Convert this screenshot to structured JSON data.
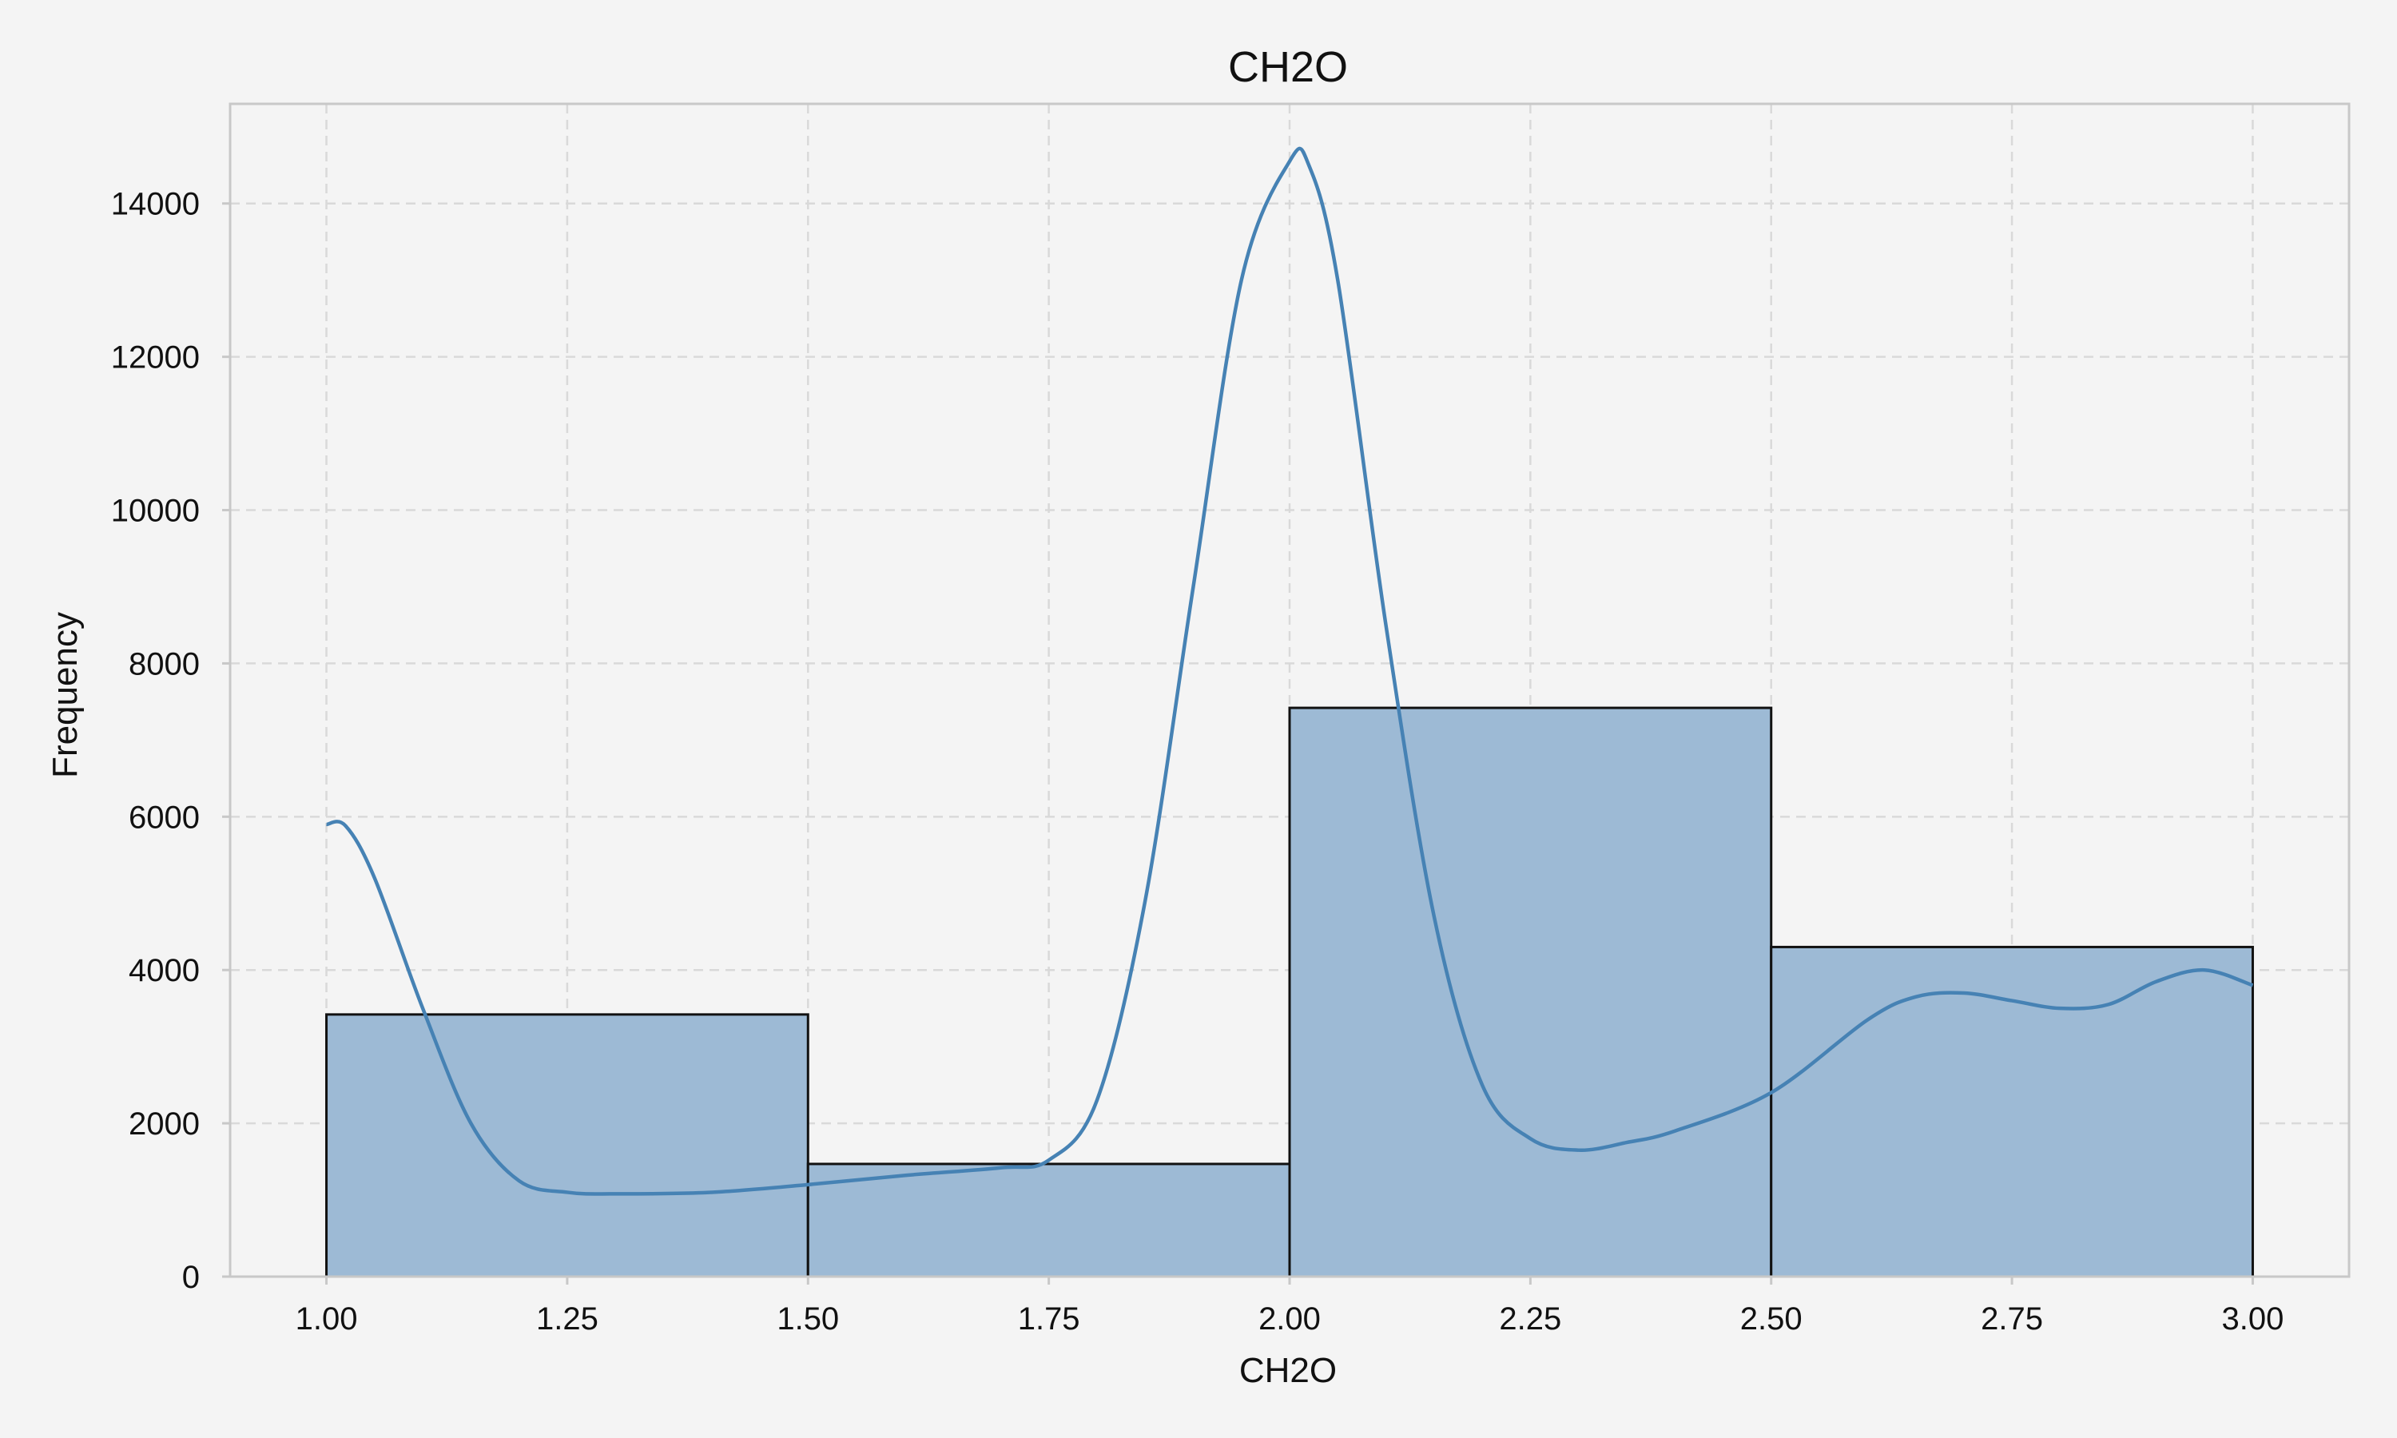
{
  "chart_data": {
    "type": "histogram",
    "title": "CH2O",
    "xlabel": "CH2O",
    "ylabel": "Frequency",
    "xlim": [
      0.9,
      3.1
    ],
    "ylim": [
      0,
      15300
    ],
    "grid": true,
    "x_ticks": [
      1.0,
      1.25,
      1.5,
      1.75,
      2.0,
      2.25,
      2.5,
      2.75,
      3.0
    ],
    "x_tick_labels": [
      "1.00",
      "1.25",
      "1.50",
      "1.75",
      "2.00",
      "2.25",
      "2.50",
      "2.75",
      "3.00"
    ],
    "y_ticks": [
      0,
      2000,
      4000,
      6000,
      8000,
      10000,
      12000,
      14000
    ],
    "y_tick_labels": [
      "0",
      "2000",
      "4000",
      "6000",
      "8000",
      "10000",
      "12000",
      "14000"
    ],
    "bins": [
      {
        "start": 1.0,
        "end": 1.5,
        "count": 3420
      },
      {
        "start": 1.5,
        "end": 2.0,
        "count": 1470
      },
      {
        "start": 2.0,
        "end": 2.5,
        "count": 7420
      },
      {
        "start": 2.5,
        "end": 3.0,
        "count": 4300
      }
    ],
    "kde": {
      "x": [
        1.0,
        1.02,
        1.05,
        1.1,
        1.15,
        1.2,
        1.25,
        1.3,
        1.4,
        1.5,
        1.6,
        1.7,
        1.75,
        1.8,
        1.85,
        1.9,
        1.95,
        2.0,
        2.02,
        2.05,
        2.1,
        2.15,
        2.2,
        2.25,
        2.3,
        2.35,
        2.4,
        2.5,
        2.6,
        2.65,
        2.7,
        2.75,
        2.8,
        2.85,
        2.9,
        2.95,
        3.0
      ],
      "y": [
        5900,
        5880,
        5200,
        3500,
        2000,
        1250,
        1100,
        1080,
        1100,
        1200,
        1320,
        1420,
        1520,
        2300,
        4900,
        9000,
        13000,
        14550,
        14500,
        13000,
        8500,
        4700,
        2500,
        1800,
        1650,
        1750,
        1900,
        2400,
        3350,
        3650,
        3700,
        3600,
        3500,
        3550,
        3850,
        4000,
        3800
      ]
    },
    "colors": {
      "bar_fill": "#9dbad5",
      "bar_edge": "#111111",
      "kde_line": "#4682b4",
      "background": "#f4f4f4",
      "grid": "#d9d9d9"
    }
  }
}
